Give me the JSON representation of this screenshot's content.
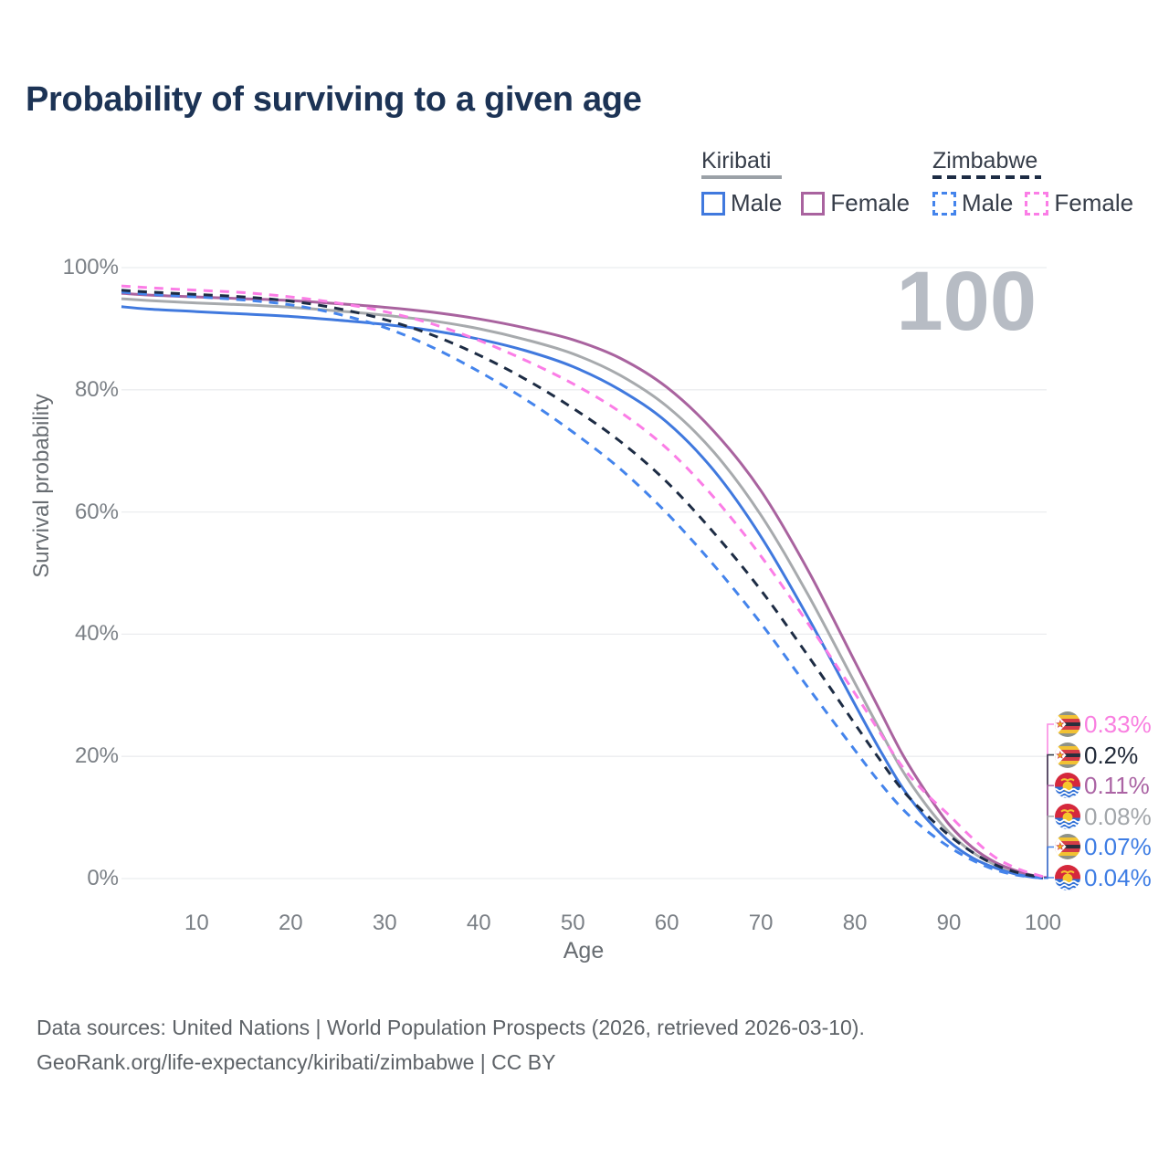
{
  "title": "Probability of surviving to a given age",
  "watermark_age": "100",
  "legend": {
    "groups": [
      {
        "country": "Kiribati",
        "line_style": "solid",
        "underline_color": "#9ba1a7",
        "items": [
          {
            "label": "Male",
            "color": "#4079de",
            "dashed": false
          },
          {
            "label": "Female",
            "color": "#a9639f",
            "dashed": false
          }
        ]
      },
      {
        "country": "Zimbabwe",
        "line_style": "dashed",
        "underline_color": "#1d2c44",
        "items": [
          {
            "label": "Male",
            "color": "#4484ec",
            "dashed": true
          },
          {
            "label": "Female",
            "color": "#fb7de6",
            "dashed": true
          }
        ]
      }
    ]
  },
  "x_axis": {
    "title": "Age",
    "ticks": [
      {
        "label": "10",
        "value": 10
      },
      {
        "label": "20",
        "value": 20
      },
      {
        "label": "30",
        "value": 30
      },
      {
        "label": "40",
        "value": 40
      },
      {
        "label": "50",
        "value": 50
      },
      {
        "label": "60",
        "value": 60
      },
      {
        "label": "70",
        "value": 70
      },
      {
        "label": "80",
        "value": 80
      },
      {
        "label": "90",
        "value": 90
      },
      {
        "label": "100",
        "value": 100
      }
    ]
  },
  "y_axis": {
    "title": "Survival probability",
    "ticks": [
      {
        "label": "0%",
        "value": 0
      },
      {
        "label": "20%",
        "value": 20
      },
      {
        "label": "40%",
        "value": 40
      },
      {
        "label": "60%",
        "value": 60
      },
      {
        "label": "80%",
        "value": 80
      },
      {
        "label": "100%",
        "value": 100
      }
    ]
  },
  "footer": {
    "line1": "Data sources: United Nations | World Population Prospects (2026, retrieved 2026-03-10).",
    "line2": "GeoRank.org/life-expectancy/kiribati/zimbabwe | CC BY"
  },
  "chart_data": {
    "type": "line",
    "title": "Probability of surviving to a given age",
    "xlabel": "Age",
    "ylabel": "Survival probability",
    "x_range": [
      2,
      100
    ],
    "ylim": [
      0,
      100
    ],
    "grid": "horizontal",
    "legend_position": "top-right",
    "ages": [
      2,
      5,
      10,
      15,
      20,
      25,
      30,
      35,
      40,
      45,
      50,
      55,
      60,
      65,
      70,
      75,
      80,
      82.5,
      85,
      87.5,
      90,
      92.5,
      95,
      97.5,
      100
    ],
    "series": [
      {
        "name": "Kiribati Both sexes",
        "country": "kiribati",
        "color": "#a7aaad",
        "dashed": false,
        "values": [
          94.9,
          94.6,
          94.2,
          93.9,
          93.5,
          92.9,
          92.2,
          91.3,
          90.0,
          88.2,
          85.9,
          82.4,
          77.3,
          69.8,
          59.5,
          46.5,
          32.0,
          24.8,
          17.8,
          12.2,
          7.6,
          4.3,
          2.2,
          0.85,
          0.08
        ]
      },
      {
        "name": "Kiribati Female",
        "country": "kiribati",
        "color": "#a9639f",
        "dashed": false,
        "values": [
          95.8,
          95.5,
          95.2,
          94.9,
          94.6,
          94.1,
          93.5,
          92.7,
          91.6,
          90.1,
          88.2,
          85.2,
          80.4,
          73.2,
          63.5,
          50.5,
          35.5,
          28.0,
          20.5,
          14.3,
          8.9,
          5.1,
          2.6,
          1.1,
          0.11
        ]
      },
      {
        "name": "Kiribati Male",
        "country": "kiribati",
        "color": "#4079de",
        "dashed": false,
        "values": [
          93.6,
          93.2,
          92.8,
          92.4,
          92.0,
          91.4,
          90.7,
          89.7,
          88.3,
          86.4,
          83.8,
          80.0,
          74.7,
          66.8,
          56.0,
          42.8,
          28.5,
          21.5,
          15.0,
          10.0,
          6.1,
          3.4,
          1.7,
          0.6,
          0.04
        ]
      },
      {
        "name": "Zimbabwe Male",
        "country": "zimbabwe",
        "color": "#4484ec",
        "dashed": true,
        "values": [
          96.0,
          95.6,
          95.2,
          94.7,
          93.9,
          92.4,
          90.2,
          87.0,
          83.0,
          78.4,
          73.1,
          67.1,
          59.8,
          51.3,
          41.8,
          31.3,
          21.0,
          16.0,
          11.5,
          8.0,
          5.2,
          3.0,
          1.4,
          0.5,
          0.07
        ]
      },
      {
        "name": "Zimbabwe Both sexes",
        "country": "zimbabwe",
        "color": "#1d2c44",
        "dashed": true,
        "values": [
          96.3,
          96.0,
          95.6,
          95.2,
          94.5,
          93.3,
          91.5,
          89.0,
          85.7,
          81.7,
          77.0,
          71.6,
          64.9,
          56.6,
          47.2,
          36.5,
          25.3,
          19.8,
          14.6,
          10.6,
          7.1,
          4.3,
          2.2,
          0.9,
          0.2
        ]
      },
      {
        "name": "Zimbabwe Female",
        "country": "zimbabwe",
        "color": "#fb7de6",
        "dashed": true,
        "values": [
          97.0,
          96.7,
          96.3,
          95.9,
          95.2,
          94.2,
          92.8,
          90.8,
          88.1,
          84.8,
          81.0,
          76.4,
          70.4,
          62.4,
          52.8,
          41.8,
          30.3,
          24.3,
          18.4,
          14.0,
          10.4,
          6.6,
          3.4,
          1.5,
          0.33
        ]
      }
    ],
    "end_labels": [
      {
        "value": "0.33%",
        "series": "Zimbabwe Female",
        "country": "zimbabwe",
        "color": "#f97fe0",
        "at_age": 100,
        "pct": 0.33
      },
      {
        "value": "0.2%",
        "series": "Zimbabwe Both sexes",
        "country": "zimbabwe",
        "color": "#222b3a",
        "at_age": 100,
        "pct": 0.2
      },
      {
        "value": "0.11%",
        "series": "Kiribati Female",
        "country": "kiribati",
        "color": "#ab64a4",
        "at_age": 100,
        "pct": 0.11
      },
      {
        "value": "0.08%",
        "series": "Kiribati Both sexes",
        "country": "kiribati",
        "color": "#a2a6aa",
        "at_age": 100,
        "pct": 0.08
      },
      {
        "value": "0.07%",
        "series": "Zimbabwe Male",
        "country": "zimbabwe",
        "color": "#3e7de4",
        "at_age": 100,
        "pct": 0.07
      },
      {
        "value": "0.04%",
        "series": "Kiribati Male",
        "country": "kiribati",
        "color": "#3e7de4",
        "at_age": 100,
        "pct": 0.04
      }
    ]
  }
}
